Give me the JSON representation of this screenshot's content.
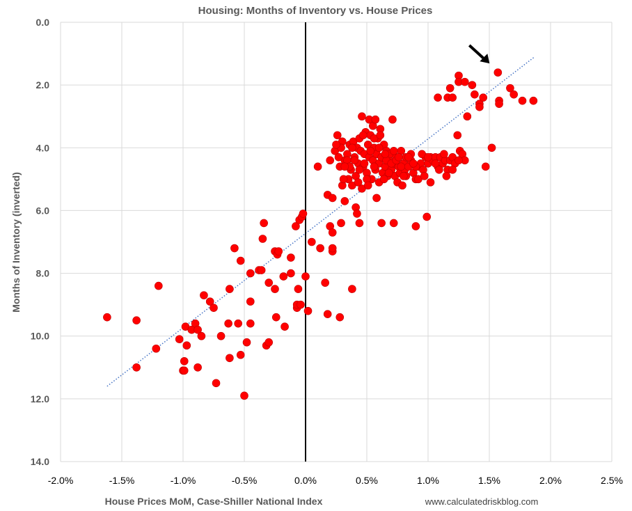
{
  "chart_data": {
    "type": "scatter",
    "title": "Housing: Months of Inventory vs. House Prices",
    "xlabel": "House Prices MoM, Case-Shiller National Index",
    "ylabel": "Months of Inventory (inverted)",
    "source": "www.calculatedriskblog.com",
    "xlim": [
      -2.0,
      2.5
    ],
    "ylim": [
      0,
      14
    ],
    "y_inverted": true,
    "x_ticks": [
      -2.0,
      -1.5,
      -1.0,
      -0.5,
      0.0,
      0.5,
      1.0,
      1.5,
      2.0,
      2.5
    ],
    "x_tick_labels": [
      "-2.0%",
      "-1.5%",
      "-1.0%",
      "-0.5%",
      "0.0%",
      "0.5%",
      "1.0%",
      "1.5%",
      "2.0%",
      "2.5%"
    ],
    "y_ticks": [
      0,
      2,
      4,
      6,
      8,
      10,
      12,
      14
    ],
    "y_tick_labels": [
      "0.0",
      "2.0",
      "4.0",
      "6.0",
      "8.0",
      "10.0",
      "12.0",
      "14.0"
    ],
    "grid": true,
    "point_color": "#ff0000",
    "trendline": {
      "style": "dotted",
      "color": "#4472c4",
      "x": [
        -1.62,
        1.87
      ],
      "y": [
        11.6,
        1.1
      ]
    },
    "zero_line": {
      "x": 0.0,
      "color": "#000000"
    },
    "annotation": {
      "type": "arrow",
      "points_to": {
        "x": 1.57,
        "y": 1.6
      },
      "color": "#000000"
    },
    "points": [
      {
        "x": -1.62,
        "y": 9.4
      },
      {
        "x": -1.38,
        "y": 9.5
      },
      {
        "x": -1.38,
        "y": 11.0
      },
      {
        "x": -1.22,
        "y": 10.4
      },
      {
        "x": -1.2,
        "y": 8.4
      },
      {
        "x": -1.03,
        "y": 10.1
      },
      {
        "x": -1.0,
        "y": 11.1
      },
      {
        "x": -0.99,
        "y": 10.8
      },
      {
        "x": -0.99,
        "y": 11.1
      },
      {
        "x": -0.98,
        "y": 9.7
      },
      {
        "x": -0.97,
        "y": 10.3
      },
      {
        "x": -0.93,
        "y": 9.8
      },
      {
        "x": -0.9,
        "y": 9.6
      },
      {
        "x": -0.88,
        "y": 11.0
      },
      {
        "x": -0.88,
        "y": 9.8
      },
      {
        "x": -0.85,
        "y": 10.0
      },
      {
        "x": -0.83,
        "y": 8.7
      },
      {
        "x": -0.78,
        "y": 8.9
      },
      {
        "x": -0.75,
        "y": 9.1
      },
      {
        "x": -0.73,
        "y": 11.5
      },
      {
        "x": -0.69,
        "y": 10.0
      },
      {
        "x": -0.63,
        "y": 9.6
      },
      {
        "x": -0.62,
        "y": 10.7
      },
      {
        "x": -0.62,
        "y": 8.5
      },
      {
        "x": -0.58,
        "y": 7.2
      },
      {
        "x": -0.55,
        "y": 9.6
      },
      {
        "x": -0.53,
        "y": 7.6
      },
      {
        "x": -0.53,
        "y": 10.6
      },
      {
        "x": -0.5,
        "y": 11.9
      },
      {
        "x": -0.48,
        "y": 10.2
      },
      {
        "x": -0.45,
        "y": 8.0
      },
      {
        "x": -0.45,
        "y": 9.6
      },
      {
        "x": -0.45,
        "y": 8.9
      },
      {
        "x": -0.38,
        "y": 7.9
      },
      {
        "x": -0.36,
        "y": 7.9
      },
      {
        "x": -0.35,
        "y": 6.9
      },
      {
        "x": -0.34,
        "y": 6.4
      },
      {
        "x": -0.32,
        "y": 10.3
      },
      {
        "x": -0.3,
        "y": 10.2
      },
      {
        "x": -0.3,
        "y": 8.3
      },
      {
        "x": -0.25,
        "y": 7.3
      },
      {
        "x": -0.25,
        "y": 8.5
      },
      {
        "x": -0.24,
        "y": 9.4
      },
      {
        "x": -0.23,
        "y": 7.4
      },
      {
        "x": -0.22,
        "y": 7.3
      },
      {
        "x": -0.18,
        "y": 8.1
      },
      {
        "x": -0.17,
        "y": 9.7
      },
      {
        "x": -0.12,
        "y": 7.5
      },
      {
        "x": -0.12,
        "y": 8.0
      },
      {
        "x": -0.08,
        "y": 6.5
      },
      {
        "x": -0.07,
        "y": 9.1
      },
      {
        "x": -0.07,
        "y": 9.0
      },
      {
        "x": -0.06,
        "y": 8.5
      },
      {
        "x": -0.05,
        "y": 6.3
      },
      {
        "x": -0.04,
        "y": 9.0
      },
      {
        "x": -0.03,
        "y": 6.2
      },
      {
        "x": -0.02,
        "y": 6.1
      },
      {
        "x": 0.0,
        "y": 8.1
      },
      {
        "x": 0.02,
        "y": 9.2
      },
      {
        "x": 0.05,
        "y": 7.0
      },
      {
        "x": 0.1,
        "y": 4.6
      },
      {
        "x": 0.12,
        "y": 7.2
      },
      {
        "x": 0.16,
        "y": 8.3
      },
      {
        "x": 0.18,
        "y": 9.3
      },
      {
        "x": 0.18,
        "y": 5.5
      },
      {
        "x": 0.2,
        "y": 6.5
      },
      {
        "x": 0.22,
        "y": 7.3
      },
      {
        "x": 0.22,
        "y": 7.2
      },
      {
        "x": 0.22,
        "y": 5.6
      },
      {
        "x": 0.22,
        "y": 6.7
      },
      {
        "x": 0.28,
        "y": 9.4
      },
      {
        "x": 0.29,
        "y": 6.4
      },
      {
        "x": 0.32,
        "y": 5.7
      },
      {
        "x": 0.3,
        "y": 5.2
      },
      {
        "x": 0.38,
        "y": 8.5
      },
      {
        "x": 0.41,
        "y": 5.9
      },
      {
        "x": 0.42,
        "y": 6.1
      },
      {
        "x": 0.44,
        "y": 6.4
      },
      {
        "x": 0.2,
        "y": 4.4
      },
      {
        "x": 0.24,
        "y": 4.1
      },
      {
        "x": 0.26,
        "y": 3.6
      },
      {
        "x": 0.28,
        "y": 4.6
      },
      {
        "x": 0.3,
        "y": 3.8
      },
      {
        "x": 0.32,
        "y": 4.4
      },
      {
        "x": 0.34,
        "y": 4.2
      },
      {
        "x": 0.35,
        "y": 5.0
      },
      {
        "x": 0.36,
        "y": 3.9
      },
      {
        "x": 0.37,
        "y": 4.7
      },
      {
        "x": 0.38,
        "y": 5.2
      },
      {
        "x": 0.39,
        "y": 3.8
      },
      {
        "x": 0.4,
        "y": 4.3
      },
      {
        "x": 0.41,
        "y": 4.9
      },
      {
        "x": 0.42,
        "y": 4.0
      },
      {
        "x": 0.43,
        "y": 4.5
      },
      {
        "x": 0.44,
        "y": 3.7
      },
      {
        "x": 0.45,
        "y": 4.1
      },
      {
        "x": 0.46,
        "y": 3.0
      },
      {
        "x": 0.46,
        "y": 5.3
      },
      {
        "x": 0.47,
        "y": 4.6
      },
      {
        "x": 0.48,
        "y": 4.2
      },
      {
        "x": 0.49,
        "y": 3.5
      },
      {
        "x": 0.5,
        "y": 4.8
      },
      {
        "x": 0.51,
        "y": 3.9
      },
      {
        "x": 0.52,
        "y": 3.1
      },
      {
        "x": 0.52,
        "y": 4.3
      },
      {
        "x": 0.53,
        "y": 3.6
      },
      {
        "x": 0.54,
        "y": 5.0
      },
      {
        "x": 0.55,
        "y": 4.4
      },
      {
        "x": 0.55,
        "y": 3.3
      },
      {
        "x": 0.56,
        "y": 4.0
      },
      {
        "x": 0.57,
        "y": 4.7
      },
      {
        "x": 0.57,
        "y": 3.1
      },
      {
        "x": 0.58,
        "y": 4.2
      },
      {
        "x": 0.59,
        "y": 3.7
      },
      {
        "x": 0.6,
        "y": 4.5
      },
      {
        "x": 0.6,
        "y": 5.1
      },
      {
        "x": 0.61,
        "y": 3.4
      },
      {
        "x": 0.62,
        "y": 4.3
      },
      {
        "x": 0.63,
        "y": 4.8
      },
      {
        "x": 0.64,
        "y": 3.9
      },
      {
        "x": 0.65,
        "y": 4.6
      },
      {
        "x": 0.66,
        "y": 4.1
      },
      {
        "x": 0.67,
        "y": 4.9
      },
      {
        "x": 0.68,
        "y": 4.4
      },
      {
        "x": 0.69,
        "y": 4.2
      },
      {
        "x": 0.7,
        "y": 4.7
      },
      {
        "x": 0.71,
        "y": 3.1
      },
      {
        "x": 0.72,
        "y": 4.5
      },
      {
        "x": 0.73,
        "y": 4.9
      },
      {
        "x": 0.74,
        "y": 4.3
      },
      {
        "x": 0.75,
        "y": 5.1
      },
      {
        "x": 0.76,
        "y": 4.6
      },
      {
        "x": 0.77,
        "y": 4.8
      },
      {
        "x": 0.78,
        "y": 4.1
      },
      {
        "x": 0.79,
        "y": 5.2
      },
      {
        "x": 0.8,
        "y": 4.5
      },
      {
        "x": 0.81,
        "y": 4.7
      },
      {
        "x": 0.82,
        "y": 4.3
      },
      {
        "x": 0.84,
        "y": 4.6
      },
      {
        "x": 0.86,
        "y": 4.4
      },
      {
        "x": 0.88,
        "y": 4.8
      },
      {
        "x": 0.9,
        "y": 5.0
      },
      {
        "x": 0.92,
        "y": 4.6
      },
      {
        "x": 0.94,
        "y": 4.5
      },
      {
        "x": 0.96,
        "y": 4.7
      },
      {
        "x": 0.98,
        "y": 4.3
      },
      {
        "x": 1.0,
        "y": 4.5
      },
      {
        "x": 1.02,
        "y": 4.3
      },
      {
        "x": 1.04,
        "y": 4.4
      },
      {
        "x": 1.06,
        "y": 4.3
      },
      {
        "x": 1.08,
        "y": 4.6
      },
      {
        "x": 1.1,
        "y": 4.3
      },
      {
        "x": 1.12,
        "y": 4.5
      },
      {
        "x": 1.14,
        "y": 4.4
      },
      {
        "x": 1.16,
        "y": 4.7
      },
      {
        "x": 1.18,
        "y": 4.4
      },
      {
        "x": 1.2,
        "y": 4.3
      },
      {
        "x": 1.22,
        "y": 4.5
      },
      {
        "x": 1.24,
        "y": 3.6
      },
      {
        "x": 1.26,
        "y": 4.1
      },
      {
        "x": 1.28,
        "y": 4.2
      },
      {
        "x": 1.3,
        "y": 4.4
      },
      {
        "x": 1.32,
        "y": 3.0
      },
      {
        "x": 1.08,
        "y": 2.4
      },
      {
        "x": 1.16,
        "y": 2.4
      },
      {
        "x": 1.18,
        "y": 2.1
      },
      {
        "x": 1.2,
        "y": 2.4
      },
      {
        "x": 1.25,
        "y": 1.7
      },
      {
        "x": 1.25,
        "y": 1.9
      },
      {
        "x": 1.3,
        "y": 1.9
      },
      {
        "x": 1.36,
        "y": 2.0
      },
      {
        "x": 1.38,
        "y": 2.3
      },
      {
        "x": 1.42,
        "y": 2.6
      },
      {
        "x": 1.42,
        "y": 2.7
      },
      {
        "x": 1.45,
        "y": 2.4
      },
      {
        "x": 1.47,
        "y": 4.6
      },
      {
        "x": 1.52,
        "y": 4.0
      },
      {
        "x": 1.57,
        "y": 1.6
      },
      {
        "x": 1.58,
        "y": 2.5
      },
      {
        "x": 1.58,
        "y": 2.6
      },
      {
        "x": 1.67,
        "y": 2.1
      },
      {
        "x": 1.7,
        "y": 2.3
      },
      {
        "x": 1.77,
        "y": 2.5
      },
      {
        "x": 1.86,
        "y": 2.5
      },
      {
        "x": 0.9,
        "y": 6.5
      },
      {
        "x": 0.99,
        "y": 6.2
      },
      {
        "x": 1.02,
        "y": 5.1
      },
      {
        "x": 0.72,
        "y": 6.4
      },
      {
        "x": 0.62,
        "y": 6.4
      },
      {
        "x": 0.58,
        "y": 5.6
      },
      {
        "x": 0.34,
        "y": 4.4
      },
      {
        "x": 0.36,
        "y": 4.6
      },
      {
        "x": 0.38,
        "y": 4.0
      },
      {
        "x": 0.4,
        "y": 4.4
      },
      {
        "x": 0.44,
        "y": 4.7
      },
      {
        "x": 0.48,
        "y": 4.5
      },
      {
        "x": 0.5,
        "y": 5.0
      },
      {
        "x": 0.53,
        "y": 4.1
      },
      {
        "x": 0.56,
        "y": 4.6
      },
      {
        "x": 0.6,
        "y": 4.0
      },
      {
        "x": 0.64,
        "y": 5.0
      },
      {
        "x": 0.66,
        "y": 4.4
      },
      {
        "x": 0.7,
        "y": 4.5
      },
      {
        "x": 0.74,
        "y": 4.4
      },
      {
        "x": 0.78,
        "y": 4.6
      },
      {
        "x": 0.82,
        "y": 4.9
      },
      {
        "x": 0.86,
        "y": 4.2
      },
      {
        "x": 0.9,
        "y": 4.6
      },
      {
        "x": 0.92,
        "y": 5.0
      },
      {
        "x": 0.95,
        "y": 4.2
      },
      {
        "x": 0.97,
        "y": 4.9
      },
      {
        "x": 1.0,
        "y": 4.3
      },
      {
        "x": 1.06,
        "y": 4.5
      },
      {
        "x": 1.09,
        "y": 4.7
      },
      {
        "x": 1.13,
        "y": 4.2
      },
      {
        "x": 1.15,
        "y": 4.9
      },
      {
        "x": 1.2,
        "y": 4.7
      },
      {
        "x": 1.25,
        "y": 4.4
      },
      {
        "x": 0.43,
        "y": 5.1
      },
      {
        "x": 0.47,
        "y": 3.6
      },
      {
        "x": 0.51,
        "y": 5.2
      },
      {
        "x": 0.56,
        "y": 3.7
      },
      {
        "x": 0.61,
        "y": 3.6
      },
      {
        "x": 0.65,
        "y": 4.2
      },
      {
        "x": 0.68,
        "y": 4.8
      },
      {
        "x": 0.72,
        "y": 4.1
      },
      {
        "x": 0.76,
        "y": 4.3
      },
      {
        "x": 0.8,
        "y": 4.9
      },
      {
        "x": 0.84,
        "y": 4.3
      },
      {
        "x": 0.88,
        "y": 4.5
      },
      {
        "x": 0.32,
        "y": 4.6
      },
      {
        "x": 0.29,
        "y": 4.0
      },
      {
        "x": 0.27,
        "y": 4.3
      },
      {
        "x": 0.25,
        "y": 3.9
      },
      {
        "x": 0.31,
        "y": 5.0
      }
    ]
  }
}
